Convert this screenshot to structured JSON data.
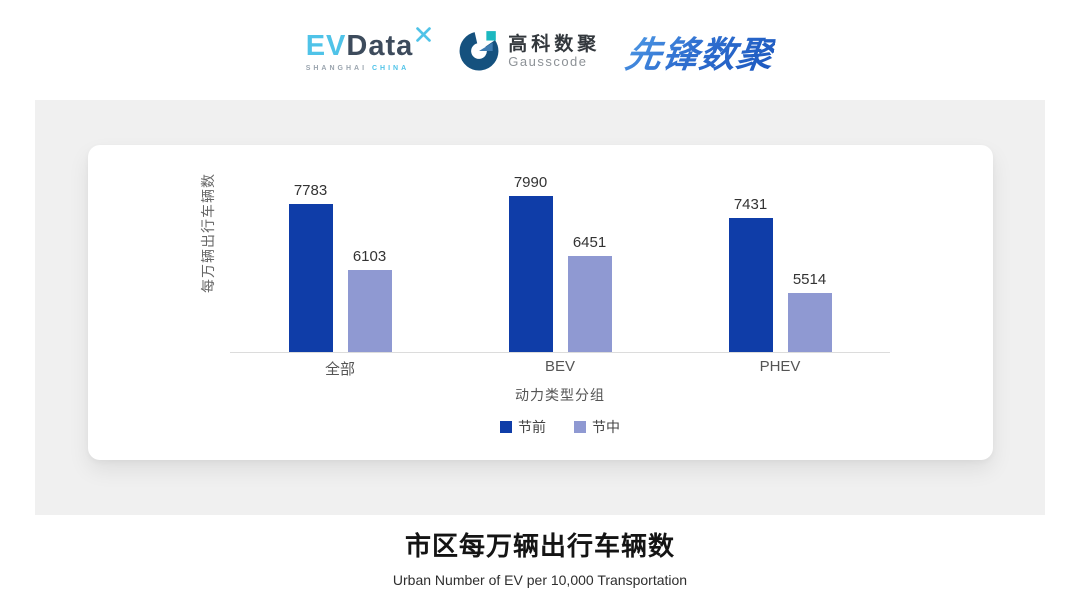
{
  "header": {
    "evdata": {
      "ev": "EV",
      "data": "Data",
      "sub_left": "SHANGHAI",
      "sub_right": "CHINA"
    },
    "gausscode": {
      "cn": "高科数聚",
      "en": "Gausscode"
    },
    "xianfeng": {
      "text": "先锋数聚"
    }
  },
  "chart_data": {
    "type": "bar",
    "categories": [
      "全部",
      "BEV",
      "PHEV"
    ],
    "series": [
      {
        "name": "节前",
        "color": "#0F3DA8",
        "values": [
          7783,
          7990,
          7431
        ]
      },
      {
        "name": "节中",
        "color": "#8F99D2",
        "values": [
          6103,
          6451,
          5514
        ]
      }
    ],
    "xlabel": "动力类型分组",
    "ylabel": "每万辆出行车辆数",
    "ylim": [
      4000,
      9100
    ],
    "grid": false,
    "value_labels": true,
    "legend_position": "bottom"
  },
  "footer": {
    "title": "市区每万辆出行车辆数",
    "subtitle": "Urban Number of EV per 10,000 Transportation"
  },
  "colors": {
    "series_pre_holiday": "#0F3DA8",
    "series_mid_holiday": "#8F99D2",
    "panel_bg": "#F0F0F0",
    "card_bg": "#FFFFFF",
    "axis_line": "#DCDCDC",
    "evdata_blue": "#4FC3E8",
    "evdata_dark": "#3D4B5C",
    "gausscode_navy": "#15517E",
    "gausscode_teal": "#1CB8C0",
    "xianfeng_blue": "#2F6FD0"
  }
}
